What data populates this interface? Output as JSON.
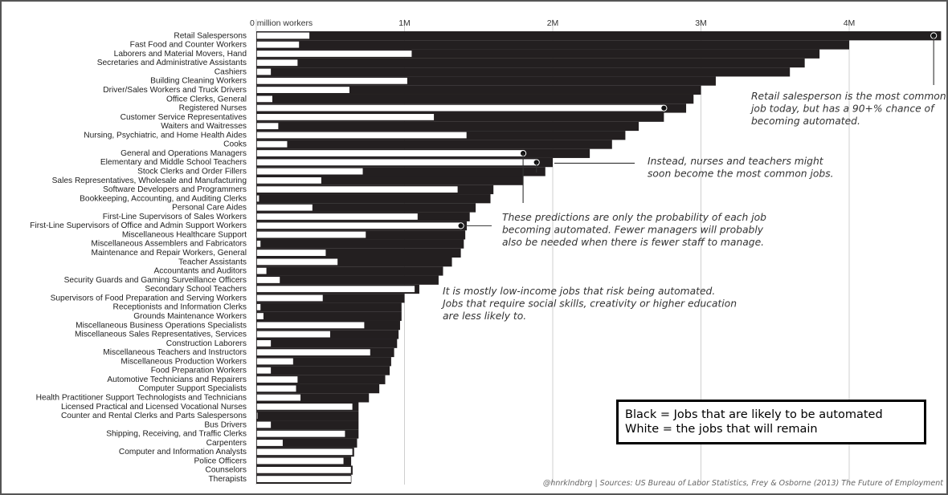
{
  "chart_data": {
    "type": "bar",
    "xaxis_ticks": [
      "0 million workers",
      "1M",
      "2M",
      "3M",
      "4M"
    ],
    "xlim": [
      0,
      4.5
    ],
    "grid": true,
    "series": [
      {
        "name": "Black = Jobs that are likely to be automated"
      },
      {
        "name": "White = the jobs that will remain"
      }
    ],
    "categories": [
      "Retail Salespersons",
      "Fast Food and Counter Workers",
      "Laborers and Material Movers, Hand",
      "Secretaries and Administrative Assistants",
      "Cashiers",
      "Building Cleaning Workers",
      "Driver/Sales Workers and Truck Drivers",
      "Office Clerks, General",
      "Registered Nurses",
      "Customer Service Representatives",
      "Waiters and Waitresses",
      "Nursing, Psychiatric, and Home Health Aides",
      "Cooks",
      "General and Operations Managers",
      "Elementary and Middle School Teachers",
      "Stock Clerks and Order Fillers",
      "Sales Representatives, Wholesale and Manufacturing",
      "Software Developers and Programmers",
      "Bookkeeping, Accounting, and Auditing Clerks",
      "Personal Care Aides",
      "First-Line Supervisors of Sales Workers",
      "First-Line Supervisors of Office and Admin Support Workers",
      "Miscellaneous Healthcare Support",
      "Miscellaneous Assemblers and Fabricators",
      "Maintenance and Repair Workers, General",
      "Teacher Assistants",
      "Accountants and Auditors",
      "Security Guards and Gaming Surveillance Officers",
      "Secondary School Teachers",
      "Supervisors of Food Preparation and Serving Workers",
      "Receptionists and Information Clerks",
      "Grounds Maintenance Workers",
      "Miscellaneous Business Operations Specialists",
      "Miscellaneous Sales Representatives, Services",
      "Construction Laborers",
      "Miscellaneous Teachers and Instructors",
      "Miscellaneous Production Workers",
      "Food Preparation Workers",
      "Automotive Technicians and Repairers",
      "Computer Support Specialists",
      "Health Practitioner Support Technologists and Technicians",
      "Licensed Practical and Licensed Vocational Nurses",
      "Counter and Rental Clerks and Parts Salespersons",
      "Bus Drivers",
      "Shipping, Receiving, and Traffic Clerks",
      "Carpenters",
      "Computer and Information Analysts",
      "Police Officers",
      "Counselors",
      "Therapists"
    ],
    "total": [
      4.62,
      4.0,
      3.8,
      3.7,
      3.6,
      3.1,
      3.0,
      2.95,
      2.9,
      2.75,
      2.58,
      2.49,
      2.4,
      2.25,
      2.0,
      1.95,
      1.8,
      1.6,
      1.58,
      1.48,
      1.44,
      1.42,
      1.41,
      1.4,
      1.38,
      1.32,
      1.26,
      1.23,
      1.1,
      1.0,
      0.98,
      0.98,
      0.97,
      0.96,
      0.95,
      0.93,
      0.91,
      0.9,
      0.87,
      0.83,
      0.76,
      0.69,
      0.69,
      0.69,
      0.69,
      0.68,
      0.66,
      0.64,
      0.65,
      0.64
    ],
    "remaining": [
      0.36,
      0.29,
      1.05,
      0.28,
      0.1,
      1.02,
      0.63,
      0.11,
      2.75,
      1.2,
      0.15,
      1.42,
      0.21,
      1.8,
      1.89,
      0.72,
      0.44,
      1.36,
      0.02,
      0.38,
      1.09,
      1.38,
      0.74,
      0.03,
      0.47,
      0.55,
      0.07,
      0.16,
      1.07,
      0.45,
      0.03,
      0.05,
      0.73,
      0.5,
      0.1,
      0.77,
      0.25,
      0.1,
      0.28,
      0.27,
      0.3,
      0.65,
      0.01,
      0.1,
      0.6,
      0.18,
      0.65,
      0.59,
      0.64,
      0.64
    ],
    "markers": [
      {
        "category": "Retail Salespersons",
        "value": 4.57
      },
      {
        "category": "Registered Nurses",
        "value": 2.75
      },
      {
        "category": "General and Operations Managers",
        "value": 1.8
      },
      {
        "category": "Elementary and Middle School Teachers",
        "value": 1.89
      },
      {
        "category": "First-Line Supervisors of Office and Admin Support Workers",
        "value": 1.38
      }
    ],
    "annotations": [
      [
        "Retail salesperson is the most common",
        "job today, but has a 90+% chance of",
        "becoming automated."
      ],
      [
        "Instead, nurses and teachers might",
        "soon become the most common jobs."
      ],
      [
        "These predictions are only the probability of each job",
        "becoming automated. Fewer managers will probably",
        "also be needed when there is fewer staff to manage."
      ],
      [
        "It is mostly low-income jobs that risk being automated.",
        "Jobs that require social skills, creativity or higher education",
        "are less likely to."
      ]
    ],
    "source": "@hnrklndbrg | Sources: US Bureau of Labor Statistics, Frey & Osborne (2013) The Future of Employment"
  },
  "legend": {
    "black": "Black = Jobs that are likely to be automated",
    "white": "White = the jobs that will remain"
  },
  "colors": {
    "automated": "#231f20",
    "remaining": "#ffffff"
  }
}
